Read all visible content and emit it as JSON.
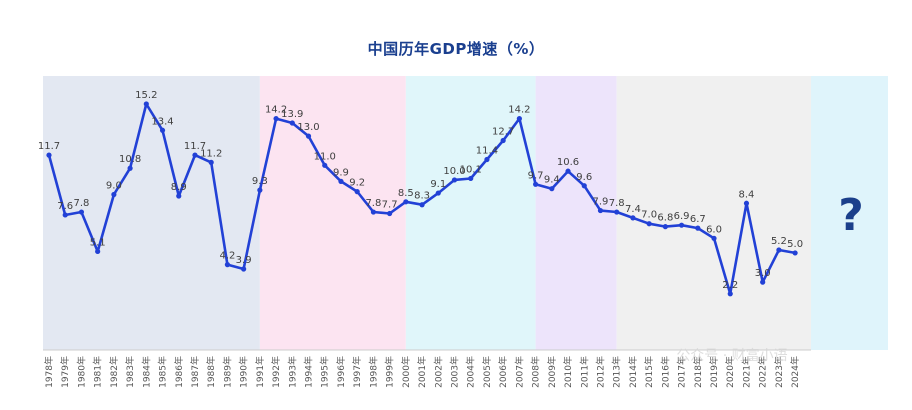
{
  "title": "中国历年GDP增速（%）",
  "unknown_marker": "?",
  "watermark": "公众号 · 财富小语",
  "colors": {
    "line": "#2241d6",
    "title": "#1a3f8f",
    "question_mark": "#1b3f8b",
    "bands": [
      "#e3e8f2",
      "#fce4f1",
      "#e0f6fa",
      "#ede4fb",
      "#f0f0f0",
      "#dff4fb"
    ]
  },
  "chart_data": {
    "type": "line",
    "title": "中国历年GDP增速（%）",
    "xlabel": "",
    "ylabel": "",
    "ylim": [
      0,
      16.5
    ],
    "grid": false,
    "x": [
      "1978年",
      "1979年",
      "1980年",
      "1981年",
      "1982年",
      "1983年",
      "1984年",
      "1985年",
      "1986年",
      "1987年",
      "1988年",
      "1989年",
      "1990年",
      "1991年",
      "1992年",
      "1993年",
      "1994年",
      "1995年",
      "1996年",
      "1997年",
      "1998年",
      "1999年",
      "2000年",
      "2001年",
      "2002年",
      "2003年",
      "2004年",
      "2005年",
      "2006年",
      "2007年",
      "2008年",
      "2009年",
      "2010年",
      "2011年",
      "2012年",
      "2013年",
      "2014年",
      "2015年",
      "2016年",
      "2017年",
      "2018年",
      "2019年",
      "2020年",
      "2021年",
      "2022年",
      "2023年",
      "2024年"
    ],
    "series": [
      {
        "values": [
          11.7,
          7.6,
          7.8,
          5.1,
          9.0,
          10.8,
          15.2,
          13.4,
          8.9,
          11.7,
          11.2,
          4.2,
          3.9,
          9.3,
          14.2,
          13.9,
          13.0,
          11.0,
          9.9,
          9.2,
          7.8,
          7.7,
          8.5,
          8.3,
          9.1,
          10.0,
          10.1,
          11.4,
          12.7,
          14.2,
          9.7,
          9.4,
          10.6,
          9.6,
          7.9,
          7.8,
          7.4,
          7.0,
          6.8,
          6.9,
          6.7,
          6.0,
          2.2,
          8.4,
          3.0,
          5.2,
          5.0
        ],
        "labels": [
          "11.7",
          "7.6",
          "7.8",
          "5.1",
          "9.0",
          "10.8",
          "15.2",
          "13.4",
          "8.9",
          "11.7",
          "11.2",
          "4.2",
          "3.9",
          "9.3",
          "14.2",
          "13.9",
          "13.0",
          "11.0",
          "9.9",
          "9.2",
          "7.8",
          "7.7",
          "8.5",
          "8.3",
          "9.1",
          "10.0",
          "10.1",
          "11.4",
          "12.7",
          "14.2",
          "9.7",
          "9.4",
          "10.6",
          "9.6",
          "7.9",
          "7.8",
          "7.4",
          "7.0",
          "6.8",
          "6.9",
          "6.7",
          "6.0",
          "2.2",
          "8.4",
          "3.0",
          "5.2",
          "5.0"
        ]
      }
    ],
    "period_bands": [
      {
        "start": "1978年",
        "end": "1991年"
      },
      {
        "start": "1991年",
        "end": "2000年"
      },
      {
        "start": "2000年",
        "end": "2008年"
      },
      {
        "start": "2008年",
        "end": "2013年"
      },
      {
        "start": "2013年",
        "end": "2025年"
      },
      {
        "start": "2025年",
        "end": "2029年"
      }
    ]
  }
}
